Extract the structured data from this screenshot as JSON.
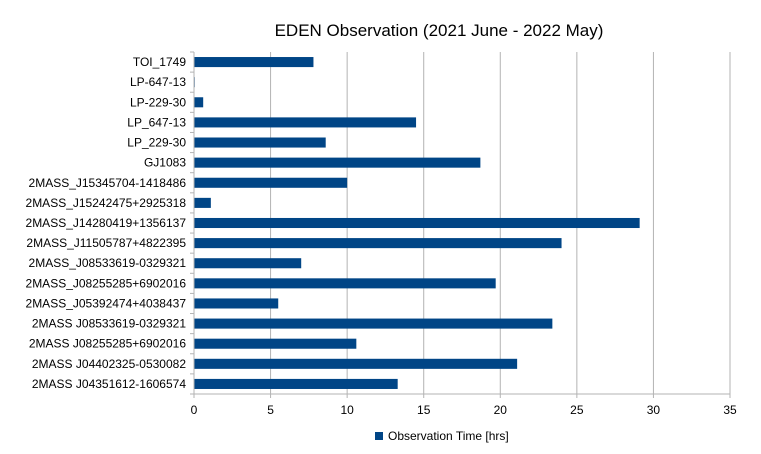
{
  "chart_data": {
    "type": "bar",
    "orientation": "horizontal",
    "title": "EDEN Observation (2021 June - 2022 May)",
    "xlabel": "",
    "ylabel": "",
    "xlim": [
      0,
      35
    ],
    "x_ticks": [
      0,
      5,
      10,
      15,
      20,
      25,
      30,
      35
    ],
    "grid": "vertical major gridlines",
    "legend_position": "bottom",
    "series_color": "#004586",
    "categories": [
      "TOI_1749",
      "LP-647-13",
      "LP-229-30",
      "LP_647-13",
      "LP_229-30",
      "GJ1083",
      "2MASS_J15345704-1418486",
      "2MASS_J15242475+2925318",
      "2MASS_J14280419+1356137",
      "2MASS_J11505787+4822395",
      "2MASS_J08533619-0329321",
      "2MASS_J08255285+6902016",
      "2MASS_J05392474+4038437",
      "2MASS J08533619-0329321",
      "2MASS J08255285+6902016",
      "2MASS J04402325-0530082",
      "2MASS J04351612-1606574"
    ],
    "series": [
      {
        "name": "Observation Time [hrs]",
        "values": [
          7.8,
          0.05,
          0.6,
          14.5,
          8.6,
          18.7,
          10.0,
          1.1,
          29.1,
          24.0,
          7.0,
          19.7,
          5.5,
          23.4,
          10.6,
          21.1,
          13.3
        ]
      }
    ]
  }
}
